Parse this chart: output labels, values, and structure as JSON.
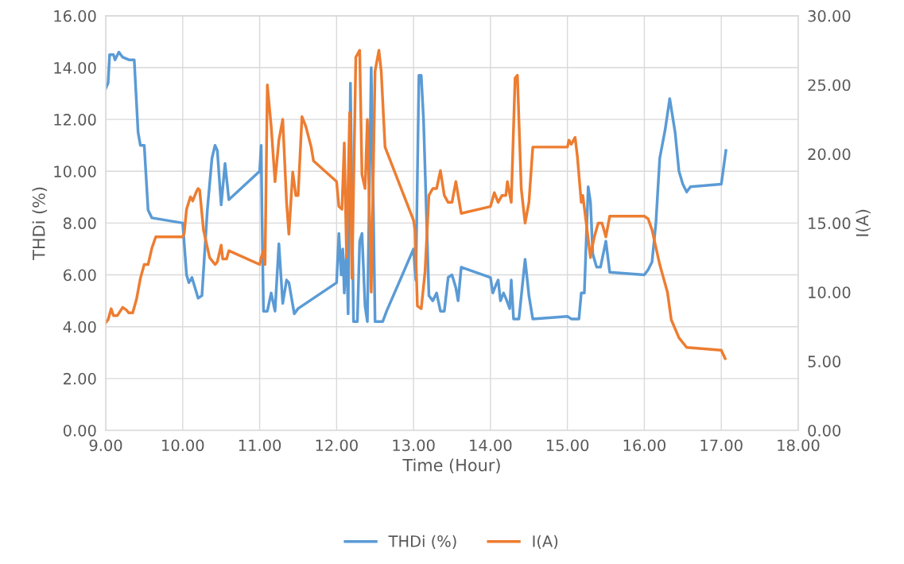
{
  "chart_data": {
    "type": "line",
    "xlabel": "Time (Hour)",
    "ylabel": "THDi (%)",
    "y2label": "I(A)",
    "xlim": [
      9,
      18
    ],
    "xticks": [
      {
        "value": 9,
        "label": "9.00"
      },
      {
        "value": 10,
        "label": "10.00"
      },
      {
        "value": 11,
        "label": "11.00"
      },
      {
        "value": 12,
        "label": "12.00"
      },
      {
        "value": 13,
        "label": "13.00"
      },
      {
        "value": 14,
        "label": "14.00"
      },
      {
        "value": 15,
        "label": "15.00"
      },
      {
        "value": 16,
        "label": "16.00"
      },
      {
        "value": 17,
        "label": "17.00"
      },
      {
        "value": 18,
        "label": "18.00"
      }
    ],
    "ylim": [
      0,
      16
    ],
    "yticks": [
      {
        "value": 0,
        "label": "0.00"
      },
      {
        "value": 2,
        "label": "2.00"
      },
      {
        "value": 4,
        "label": "4.00"
      },
      {
        "value": 6,
        "label": "6.00"
      },
      {
        "value": 8,
        "label": "8.00"
      },
      {
        "value": 10,
        "label": "10.00"
      },
      {
        "value": 12,
        "label": "12.00"
      },
      {
        "value": 14,
        "label": "14.00"
      },
      {
        "value": 16,
        "label": "16.00"
      }
    ],
    "y2lim": [
      0,
      30
    ],
    "y2ticks": [
      {
        "value": 0,
        "label": "0.00"
      },
      {
        "value": 5,
        "label": "5.00"
      },
      {
        "value": 10,
        "label": "10.00"
      },
      {
        "value": 15,
        "label": "15.00"
      },
      {
        "value": 20,
        "label": "20.00"
      },
      {
        "value": 25,
        "label": "25.00"
      },
      {
        "value": 30,
        "label": "30.00"
      }
    ],
    "grid": true,
    "legend": "bottom",
    "marker": "none",
    "line_style": "solid",
    "series": [
      {
        "name": "THDi (%)",
        "color": "#5b9bd5",
        "x": [
          9.0,
          9.03,
          9.05,
          9.1,
          9.12,
          9.17,
          9.22,
          9.3,
          9.37,
          9.42,
          9.45,
          9.5,
          9.55,
          9.6,
          10.0,
          10.05,
          10.08,
          10.12,
          10.2,
          10.25,
          10.32,
          10.38,
          10.42,
          10.45,
          10.5,
          10.55,
          10.6,
          11.0,
          11.02,
          11.03,
          11.05,
          11.1,
          11.15,
          11.2,
          11.25,
          11.3,
          11.35,
          11.38,
          11.45,
          11.5,
          12.0,
          12.03,
          12.06,
          12.08,
          12.1,
          12.13,
          12.15,
          12.18,
          12.22,
          12.27,
          12.3,
          12.33,
          12.37,
          12.4,
          12.45,
          12.5,
          12.6,
          12.65,
          13.0,
          13.03,
          13.07,
          13.1,
          13.13,
          13.2,
          13.25,
          13.3,
          13.35,
          13.4,
          13.45,
          13.5,
          13.55,
          13.58,
          13.62,
          14.0,
          14.03,
          14.07,
          14.1,
          14.13,
          14.17,
          14.2,
          14.25,
          14.27,
          14.3,
          14.37,
          14.45,
          14.5,
          14.55,
          15.0,
          15.05,
          15.15,
          15.18,
          15.22,
          15.27,
          15.3,
          15.33,
          15.38,
          15.43,
          15.5,
          15.55,
          16.0,
          16.05,
          16.1,
          16.15,
          16.2,
          16.27,
          16.33,
          16.4,
          16.45,
          16.5,
          16.55,
          16.6,
          17.0,
          17.06
        ],
        "values": [
          13.2,
          13.4,
          14.5,
          14.5,
          14.3,
          14.6,
          14.4,
          14.3,
          14.3,
          11.5,
          11.0,
          11.0,
          8.5,
          8.2,
          8.0,
          6.0,
          5.7,
          5.9,
          5.1,
          5.2,
          8.5,
          10.5,
          11.0,
          10.8,
          8.7,
          10.3,
          8.9,
          10.0,
          11.0,
          8.4,
          4.6,
          4.6,
          5.3,
          4.6,
          7.2,
          4.9,
          5.8,
          5.7,
          4.5,
          4.7,
          5.7,
          7.6,
          6.0,
          7.0,
          5.3,
          7.0,
          4.5,
          13.4,
          4.2,
          4.2,
          7.3,
          7.6,
          4.8,
          4.2,
          14.0,
          4.2,
          4.2,
          4.6,
          7.0,
          5.8,
          13.7,
          13.7,
          12.0,
          5.2,
          5.0,
          5.3,
          4.6,
          4.6,
          5.9,
          6.0,
          5.5,
          5.0,
          6.3,
          5.9,
          5.3,
          5.6,
          5.8,
          5.0,
          5.3,
          5.1,
          4.7,
          5.8,
          4.3,
          4.3,
          6.6,
          5.2,
          4.3,
          4.4,
          4.3,
          4.3,
          5.3,
          5.3,
          9.4,
          8.8,
          6.8,
          6.3,
          6.3,
          7.3,
          6.1,
          6.0,
          6.2,
          6.5,
          8.0,
          10.5,
          11.6,
          12.8,
          11.5,
          10.0,
          9.5,
          9.2,
          9.4,
          9.5,
          10.8
        ]
      },
      {
        "name": "I(A)",
        "color": "#ed7d31",
        "axis": "y2",
        "x": [
          9.0,
          9.03,
          9.07,
          9.1,
          9.15,
          9.22,
          9.27,
          9.3,
          9.35,
          9.4,
          9.45,
          9.5,
          9.55,
          9.6,
          9.65,
          10.0,
          10.02,
          10.05,
          10.1,
          10.13,
          10.18,
          10.2,
          10.22,
          10.27,
          10.35,
          10.42,
          10.45,
          10.5,
          10.52,
          10.57,
          10.6,
          11.0,
          11.02,
          11.05,
          11.07,
          11.1,
          11.15,
          11.2,
          11.25,
          11.3,
          11.35,
          11.38,
          11.43,
          11.47,
          11.5,
          11.55,
          11.6,
          11.67,
          11.7,
          12.0,
          12.03,
          12.07,
          12.1,
          12.13,
          12.17,
          12.2,
          12.25,
          12.3,
          12.33,
          12.37,
          12.4,
          12.45,
          12.5,
          12.55,
          12.58,
          12.63,
          13.0,
          13.02,
          13.05,
          13.1,
          13.15,
          13.2,
          13.25,
          13.3,
          13.35,
          13.4,
          13.45,
          13.5,
          13.55,
          13.62,
          14.0,
          14.05,
          14.1,
          14.15,
          14.2,
          14.22,
          14.27,
          14.32,
          14.35,
          14.4,
          14.45,
          14.5,
          14.55,
          15.0,
          15.02,
          15.05,
          15.1,
          15.13,
          15.18,
          15.2,
          15.3,
          15.32,
          15.35,
          15.4,
          15.45,
          15.5,
          15.55,
          16.0,
          16.05,
          16.1,
          16.2,
          16.25,
          16.3,
          16.35,
          16.45,
          16.55,
          17.0,
          17.05
        ],
        "values": [
          7.8,
          8.0,
          8.8,
          8.3,
          8.3,
          8.9,
          8.7,
          8.5,
          8.5,
          9.5,
          11.0,
          12.0,
          12.0,
          13.2,
          14.0,
          14.0,
          14.3,
          16.0,
          16.9,
          16.6,
          17.3,
          17.5,
          17.4,
          14.5,
          12.5,
          12.0,
          12.2,
          13.4,
          12.4,
          12.4,
          13.0,
          12.0,
          12.5,
          13.0,
          12.0,
          25.0,
          22.0,
          18.0,
          21.0,
          22.5,
          16.5,
          14.2,
          18.7,
          17.0,
          17.0,
          22.7,
          22.0,
          20.5,
          19.5,
          18.0,
          16.2,
          16.0,
          20.8,
          12.5,
          23.0,
          11.0,
          27.0,
          27.5,
          18.5,
          17.5,
          22.5,
          10.0,
          26.0,
          27.5,
          26.0,
          20.5,
          15.2,
          14.5,
          9.0,
          8.8,
          11.5,
          17.0,
          17.5,
          17.5,
          18.8,
          17.0,
          16.5,
          16.5,
          18.0,
          15.7,
          16.2,
          17.2,
          16.5,
          17.0,
          17.0,
          18.0,
          16.5,
          25.5,
          25.7,
          17.5,
          15.0,
          16.5,
          20.5,
          20.5,
          21.0,
          20.7,
          21.2,
          19.8,
          16.5,
          17.0,
          12.5,
          13.2,
          14.0,
          15.0,
          15.0,
          14.0,
          15.5,
          15.5,
          15.3,
          14.5,
          12.0,
          11.0,
          10.0,
          8.0,
          6.7,
          6.0,
          5.8,
          5.2
        ]
      }
    ]
  }
}
